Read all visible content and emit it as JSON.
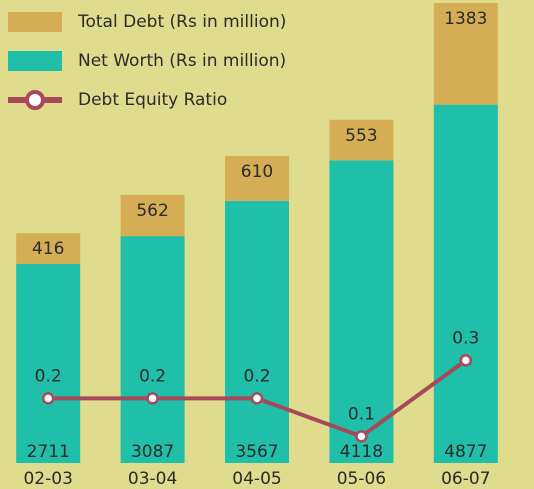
{
  "chart_data": {
    "type": "bar",
    "categories": [
      "02-03",
      "03-04",
      "04-05",
      "05-06",
      "06-07"
    ],
    "series": [
      {
        "name": "Total Debt (Rs in million)",
        "color": "#d5ad55",
        "values": [
          416,
          562,
          610,
          553,
          1383
        ],
        "stack": "top"
      },
      {
        "name": "Net Worth (Rs in million)",
        "color": "#1fbfa9",
        "values": [
          2711,
          3087,
          3567,
          4118,
          4877
        ],
        "stack": "bottom"
      },
      {
        "name": "Debt Equity Ratio",
        "color": "#a8485b",
        "values": [
          0.2,
          0.2,
          0.2,
          0.1,
          0.3
        ],
        "axis": "y2",
        "type": "line"
      }
    ],
    "ylim": [
      0,
      6260
    ],
    "y2lim": [
      0.03,
      1.24
    ]
  }
}
